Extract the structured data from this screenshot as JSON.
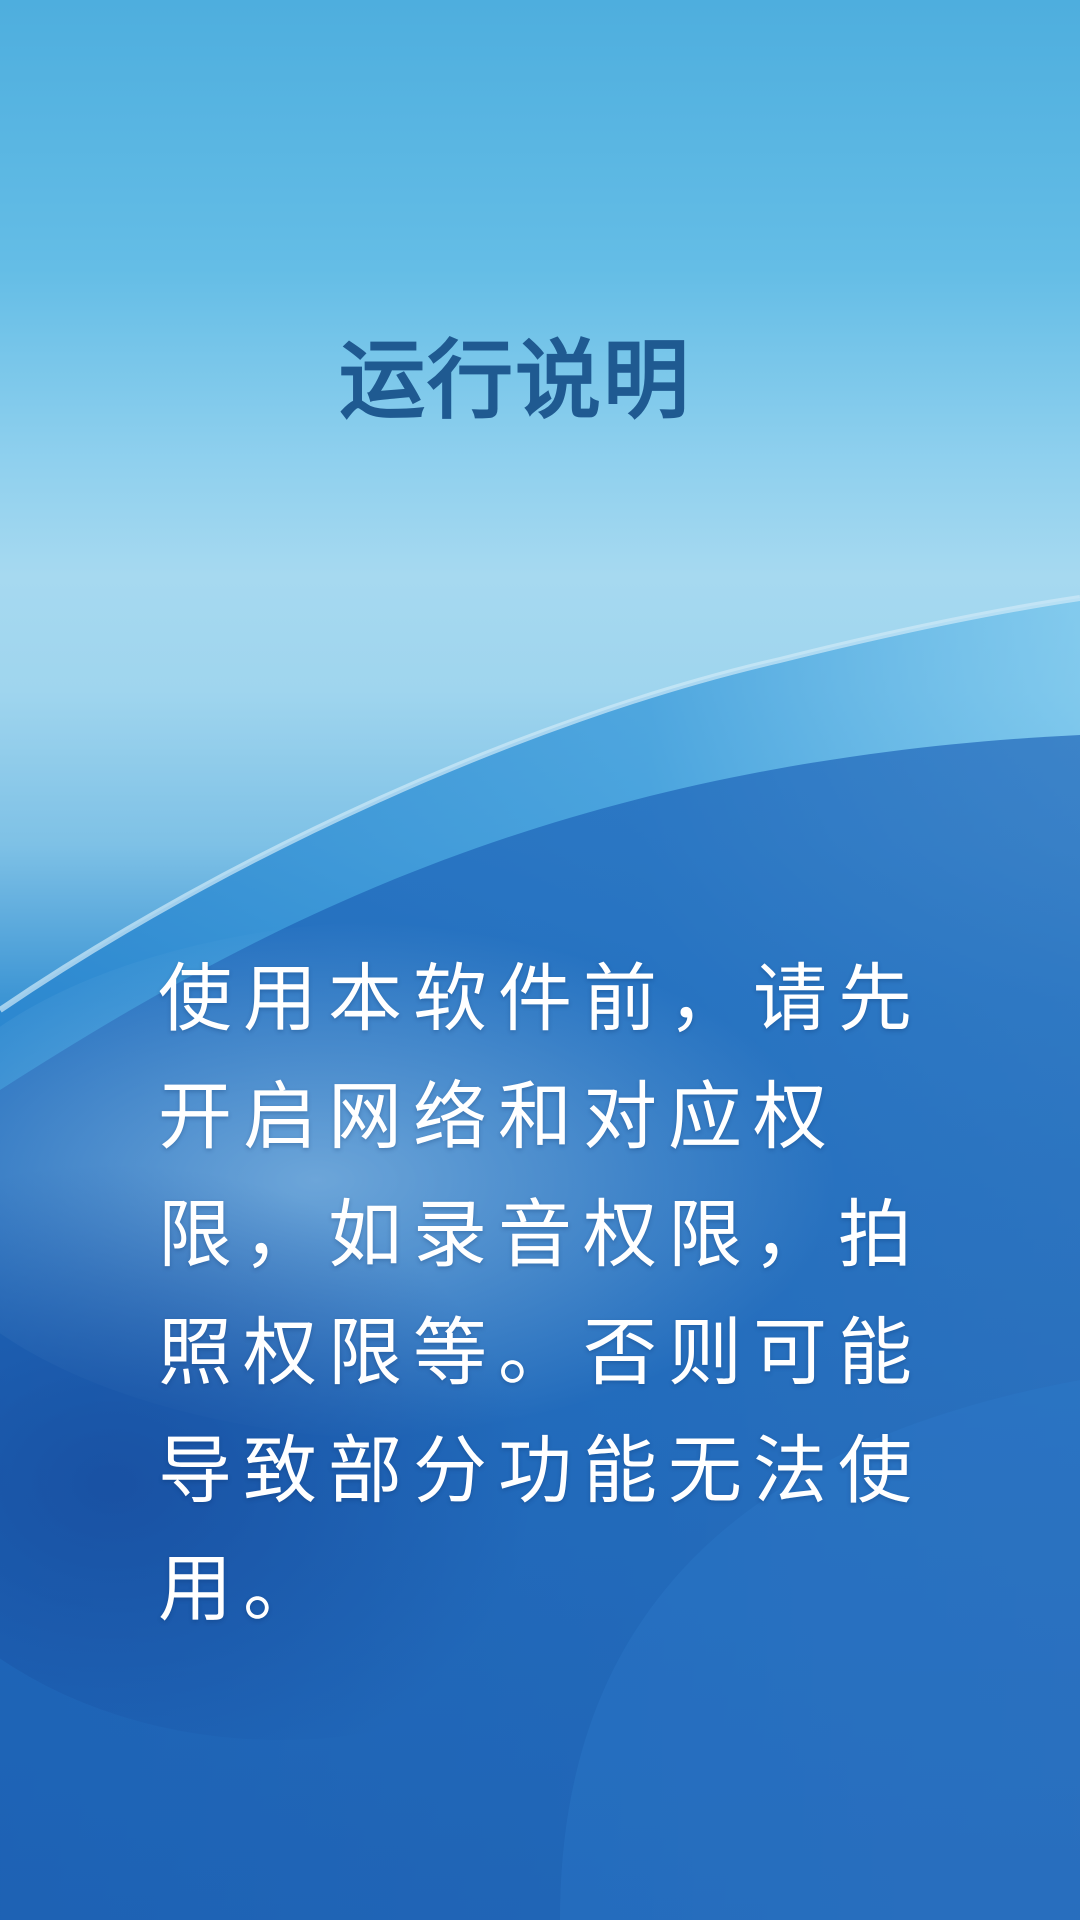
{
  "screen": {
    "title": "运行说明",
    "body": "使用本软件前，请先开启网络和对应权限，如录音权限，拍照权限等。否则可能导致部分功能无法使用。"
  },
  "colors": {
    "title": "#1f5a91",
    "body_text": "#ffffff",
    "background_top": "#4eaede",
    "background_bottom": "#1957ac"
  }
}
